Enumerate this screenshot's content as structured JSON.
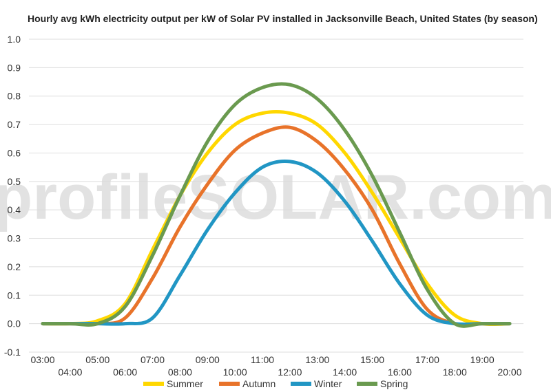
{
  "chart_data": {
    "type": "line",
    "title": "Hourly avg kWh electricity output per kW of Solar PV installed in Jacksonville Beach, United States (by season)",
    "watermark": "profileSOLAR.com",
    "xlabel": "",
    "ylabel": "",
    "x": [
      "03:00",
      "04:00",
      "05:00",
      "06:00",
      "07:00",
      "08:00",
      "09:00",
      "10:00",
      "11:00",
      "12:00",
      "13:00",
      "14:00",
      "15:00",
      "16:00",
      "17:00",
      "18:00",
      "19:00",
      "20:00"
    ],
    "y_ticks": [
      "-0.1",
      "0.0",
      "0.1",
      "0.2",
      "0.3",
      "0.4",
      "0.5",
      "0.6",
      "0.7",
      "0.8",
      "0.9",
      "1.0"
    ],
    "ylim": [
      -0.1,
      1.0
    ],
    "grid": true,
    "legend_position": "bottom",
    "series": [
      {
        "name": "Summer",
        "color": "#ffd700",
        "values": [
          0.0,
          0.0,
          0.01,
          0.07,
          0.26,
          0.45,
          0.6,
          0.7,
          0.74,
          0.74,
          0.7,
          0.6,
          0.46,
          0.3,
          0.14,
          0.03,
          0.0,
          0.0
        ]
      },
      {
        "name": "Autumn",
        "color": "#e8732a",
        "values": [
          0.0,
          0.0,
          0.0,
          0.02,
          0.16,
          0.34,
          0.49,
          0.61,
          0.67,
          0.69,
          0.64,
          0.54,
          0.4,
          0.21,
          0.05,
          0.0,
          0.0,
          0.0
        ]
      },
      {
        "name": "Winter",
        "color": "#2196c4",
        "values": [
          0.0,
          0.0,
          0.0,
          0.0,
          0.02,
          0.17,
          0.33,
          0.46,
          0.55,
          0.57,
          0.53,
          0.43,
          0.29,
          0.14,
          0.03,
          0.0,
          0.0,
          0.0
        ]
      },
      {
        "name": "Spring",
        "color": "#6a9a4f",
        "values": [
          0.0,
          0.0,
          0.0,
          0.06,
          0.24,
          0.45,
          0.64,
          0.77,
          0.83,
          0.84,
          0.79,
          0.68,
          0.52,
          0.32,
          0.12,
          0.0,
          0.0,
          0.0
        ]
      }
    ]
  }
}
